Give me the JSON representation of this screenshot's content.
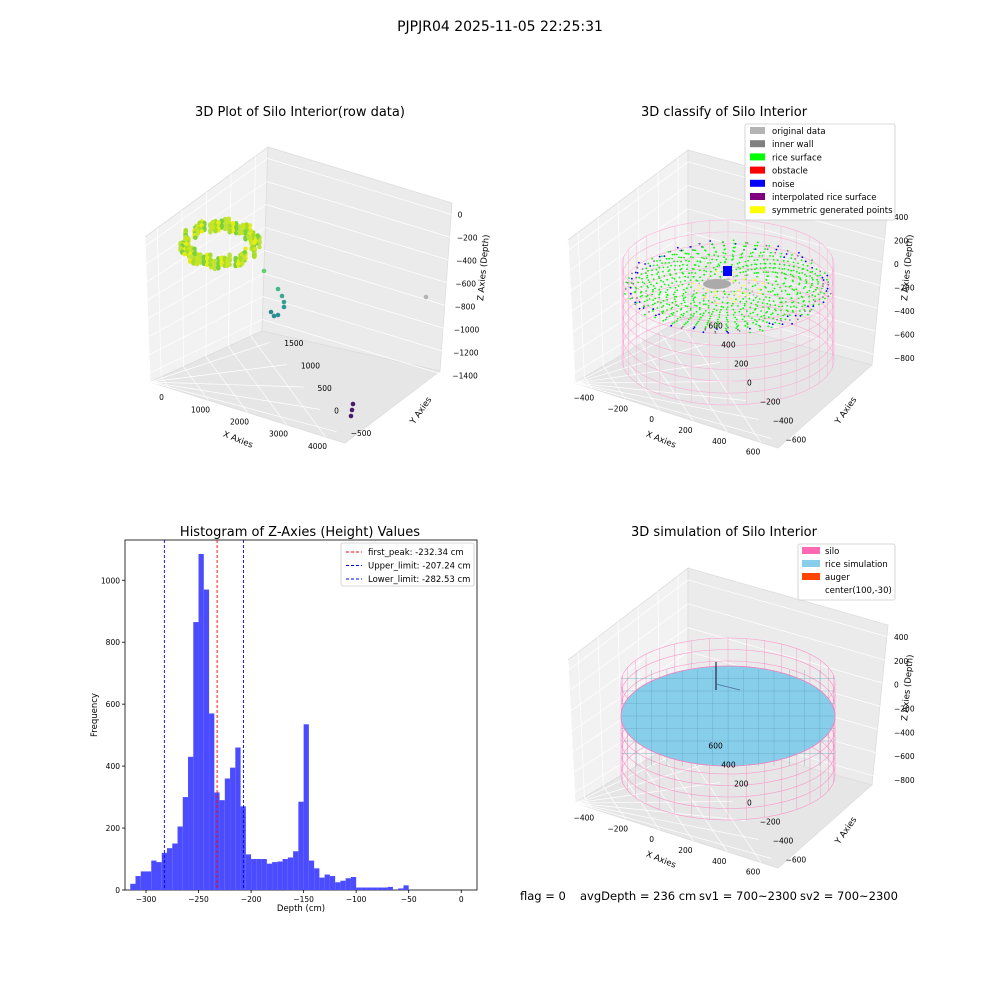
{
  "figure_title": "PJPJR04 2025-11-05 22:25:31",
  "panels": {
    "raw": {
      "title": "3D Plot of Silo Interior(row data)",
      "x_label": "X Axies",
      "y_label": "Y Axies",
      "z_label": "Z Axies (Depth)",
      "x_ticks": [
        "0",
        "1000",
        "2000",
        "3000",
        "4000"
      ],
      "y_ticks": [
        "−500",
        "0",
        "500",
        "1000",
        "1500"
      ],
      "z_ticks": [
        "0",
        "−200",
        "−400",
        "−600",
        "−800",
        "−1000",
        "−1200",
        "−1400"
      ]
    },
    "classify": {
      "title": "3D classify of Silo Interior",
      "x_label": "X Axies",
      "y_label": "Y Axies",
      "z_label": "Z Axies (Depth)",
      "x_ticks": [
        "−400",
        "−200",
        "0",
        "200",
        "400",
        "600"
      ],
      "y_ticks": [
        "−600",
        "−400",
        "−200",
        "0",
        "200",
        "400",
        "600"
      ],
      "z_ticks": [
        "400",
        "200",
        "0",
        "−200",
        "−400",
        "−600",
        "−800"
      ],
      "legend": [
        {
          "label": "original data",
          "color": "#b4b4b4"
        },
        {
          "label": "inner wall",
          "color": "#808080"
        },
        {
          "label": "rice surface",
          "color": "#00ff00"
        },
        {
          "label": "obstacle",
          "color": "#ff0000"
        },
        {
          "label": "noise",
          "color": "#0000ff"
        },
        {
          "label": "interpolated rice surface",
          "color": "#800080"
        },
        {
          "label": "symmetric generated points",
          "color": "#ffff00"
        }
      ]
    },
    "simulation": {
      "title": "3D simulation of Silo Interior",
      "x_label": "X Axies",
      "y_label": "Y Axies",
      "z_label": "Z Axies (Depth)",
      "x_ticks": [
        "−400",
        "−200",
        "0",
        "200",
        "400",
        "600"
      ],
      "y_ticks": [
        "−600",
        "−400",
        "−200",
        "0",
        "200",
        "400",
        "600"
      ],
      "z_ticks": [
        "400",
        "200",
        "0",
        "−200",
        "−400",
        "−600",
        "−800"
      ],
      "legend": [
        {
          "label": "silo",
          "color": "#ff69b4"
        },
        {
          "label": "rice simulation",
          "color": "#87ceeb"
        },
        {
          "label": "auger",
          "color": "#ff4500"
        },
        {
          "label": "center(100,-30)",
          "color": ""
        }
      ]
    }
  },
  "chart_data": {
    "type": "bar",
    "title": "Histogram of Z-Axies (Height) Values",
    "xlabel": "Depth (cm)",
    "ylabel": "Frequency",
    "xlim": [
      -320,
      15
    ],
    "ylim": [
      0,
      1130
    ],
    "bin_start": -315,
    "bin_width": 5,
    "values": [
      20,
      45,
      60,
      60,
      95,
      90,
      120,
      135,
      150,
      205,
      300,
      430,
      865,
      1085,
      970,
      570,
      315,
      290,
      360,
      395,
      460,
      270,
      115,
      100,
      100,
      100,
      85,
      90,
      92,
      100,
      105,
      125,
      285,
      535,
      95,
      70,
      40,
      50,
      45,
      25,
      30,
      38,
      42,
      8,
      8,
      8,
      8,
      8,
      8,
      10,
      0,
      5,
      15
    ],
    "x_ticks": [
      -300,
      -250,
      -200,
      -150,
      -100,
      -50,
      0
    ],
    "y_ticks": [
      0,
      200,
      400,
      600,
      800,
      1000
    ],
    "bar_color": "#4b4bff",
    "vlines": [
      {
        "x": -232.34,
        "color": "#ff0000",
        "label": "first_peak: -232.34 cm"
      },
      {
        "x": -207.24,
        "color": "#0000ff",
        "label": "Upper_limit: -207.24 cm"
      },
      {
        "x": -282.53,
        "color": "#0000ff",
        "label": "Lower_limit: -282.53 cm"
      }
    ],
    "legend_position": "top-right",
    "grid": false
  },
  "status": {
    "flag": "flag = 0",
    "avg_depth": "avgDepth = 236 cm",
    "sv1": "sv1 = 700~2300",
    "sv2": "sv2 = 700~2300"
  }
}
